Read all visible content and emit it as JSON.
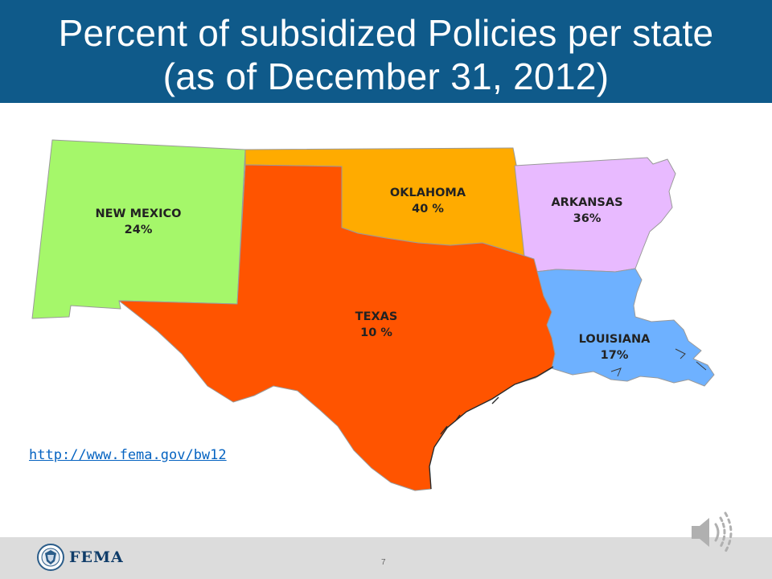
{
  "slide": {
    "title": "Percent of subsidized Policies per state (as of December 31, 2012)",
    "link": "http://www.fema.gov/bw12",
    "page_number": "7"
  },
  "branding": {
    "logo_text": "FEMA"
  },
  "colors": {
    "header": "#0f5a8a",
    "new_mexico": "#a5f76a",
    "texas": "#ff5400",
    "oklahoma": "#ffab00",
    "arkansas": "#e8baff",
    "louisiana": "#6eb1ff",
    "link": "#0563c1"
  },
  "states": [
    {
      "name": "NEW MEXICO",
      "value": "24%"
    },
    {
      "name": "OKLAHOMA",
      "value": "40 %"
    },
    {
      "name": "ARKANSAS",
      "value": "36%"
    },
    {
      "name": "TEXAS",
      "value": "10 %"
    },
    {
      "name": "LOUISIANA",
      "value": "17%"
    }
  ],
  "icons": {
    "seal": "dhs-seal-icon",
    "audio": "speaker-icon"
  }
}
